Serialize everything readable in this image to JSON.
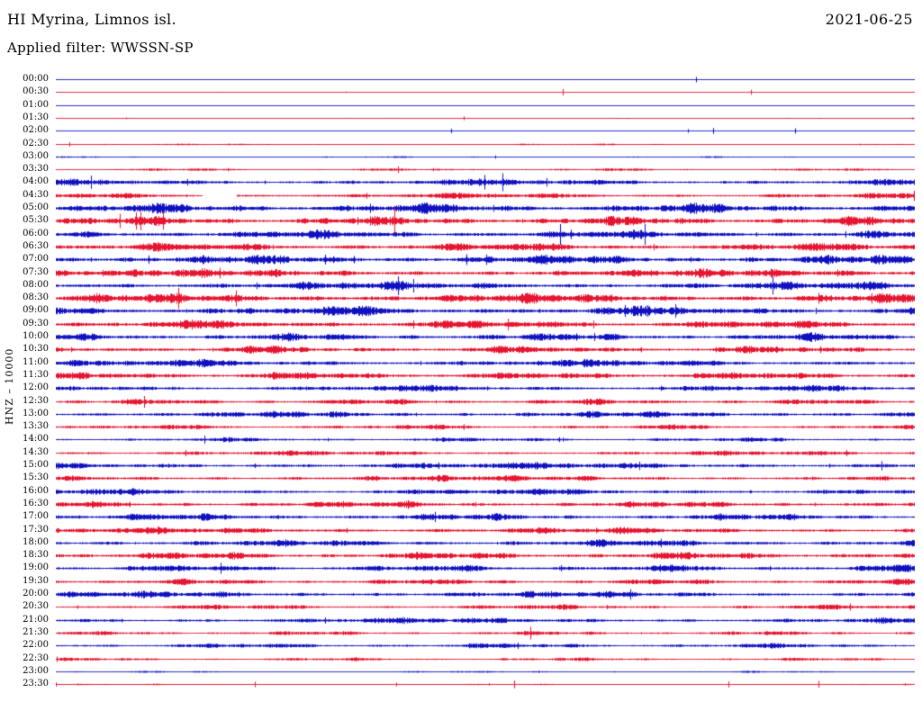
{
  "header": {
    "station": "HI Myrina, Limnos isl.",
    "date": "2021-06-25",
    "filter": "Applied filter: WWSSN-SP"
  },
  "axis": {
    "channel_label": "HNZ – 10000"
  },
  "chart_data": {
    "type": "line",
    "title": "Helicorder seismogram, HI Myrina, Limnos isl., 2021-06-25, filter WWSSN-SP, channel HNZ, scale 10000",
    "row_duration_minutes": 30,
    "layout": {
      "rows_count": 48,
      "alternating_colors": true,
      "legend": "none",
      "grid": false
    },
    "palette": {
      "blue": "#0f10c0",
      "red": "#e61430"
    },
    "amplitude_note": "amp is relative trace fuzz amplitude 0-1 estimated from pixels; gap is fractional x-range with missing data",
    "rows": [
      {
        "time": "00:00",
        "color": "blue",
        "amp": 0.05
      },
      {
        "time": "00:30",
        "color": "red",
        "amp": 0.05
      },
      {
        "time": "01:00",
        "color": "blue",
        "amp": 0.05
      },
      {
        "time": "01:30",
        "color": "red",
        "amp": 0.06
      },
      {
        "time": "02:00",
        "color": "blue",
        "amp": 0.05
      },
      {
        "time": "02:30",
        "color": "red",
        "amp": 0.1
      },
      {
        "time": "03:00",
        "color": "blue",
        "amp": 0.1
      },
      {
        "time": "03:30",
        "color": "red",
        "amp": 0.18
      },
      {
        "time": "04:00",
        "color": "blue",
        "amp": 0.42
      },
      {
        "time": "04:30",
        "color": "red",
        "amp": 0.38,
        "gap": [
          0.17,
          0.21
        ]
      },
      {
        "time": "05:00",
        "color": "blue",
        "amp": 0.62
      },
      {
        "time": "05:30",
        "color": "red",
        "amp": 0.6
      },
      {
        "time": "06:00",
        "color": "blue",
        "amp": 0.55
      },
      {
        "time": "06:30",
        "color": "red",
        "amp": 0.55
      },
      {
        "time": "07:00",
        "color": "blue",
        "amp": 0.6
      },
      {
        "time": "07:30",
        "color": "red",
        "amp": 0.55
      },
      {
        "time": "08:00",
        "color": "blue",
        "amp": 0.55
      },
      {
        "time": "08:30",
        "color": "red",
        "amp": 0.65
      },
      {
        "time": "09:00",
        "color": "blue",
        "amp": 0.6
      },
      {
        "time": "09:30",
        "color": "red",
        "amp": 0.55
      },
      {
        "time": "10:00",
        "color": "blue",
        "amp": 0.5
      },
      {
        "time": "10:30",
        "color": "red",
        "amp": 0.48
      },
      {
        "time": "11:00",
        "color": "blue",
        "amp": 0.48
      },
      {
        "time": "11:30",
        "color": "red",
        "amp": 0.52
      },
      {
        "time": "12:00",
        "color": "blue",
        "amp": 0.42
      },
      {
        "time": "12:30",
        "color": "red",
        "amp": 0.38
      },
      {
        "time": "13:00",
        "color": "blue",
        "amp": 0.42
      },
      {
        "time": "13:30",
        "color": "red",
        "amp": 0.32
      },
      {
        "time": "14:00",
        "color": "blue",
        "amp": 0.28
      },
      {
        "time": "14:30",
        "color": "red",
        "amp": 0.32
      },
      {
        "time": "15:00",
        "color": "blue",
        "amp": 0.45
      },
      {
        "time": "15:30",
        "color": "red",
        "amp": 0.38
      },
      {
        "time": "16:00",
        "color": "blue",
        "amp": 0.42
      },
      {
        "time": "16:30",
        "color": "red",
        "amp": 0.42
      },
      {
        "time": "17:00",
        "color": "blue",
        "amp": 0.45
      },
      {
        "time": "17:30",
        "color": "red",
        "amp": 0.42
      },
      {
        "time": "18:00",
        "color": "blue",
        "amp": 0.45
      },
      {
        "time": "18:30",
        "color": "red",
        "amp": 0.5
      },
      {
        "time": "19:00",
        "color": "blue",
        "amp": 0.45
      },
      {
        "time": "19:30",
        "color": "red",
        "amp": 0.38
      },
      {
        "time": "20:00",
        "color": "blue",
        "amp": 0.42
      },
      {
        "time": "20:30",
        "color": "red",
        "amp": 0.32
      },
      {
        "time": "21:00",
        "color": "blue",
        "amp": 0.38
      },
      {
        "time": "21:30",
        "color": "red",
        "amp": 0.28
      },
      {
        "time": "22:00",
        "color": "blue",
        "amp": 0.32
      },
      {
        "time": "22:30",
        "color": "red",
        "amp": 0.22
      },
      {
        "time": "23:00",
        "color": "blue",
        "amp": 0.12
      },
      {
        "time": "23:30",
        "color": "red",
        "amp": 0.08
      }
    ]
  }
}
